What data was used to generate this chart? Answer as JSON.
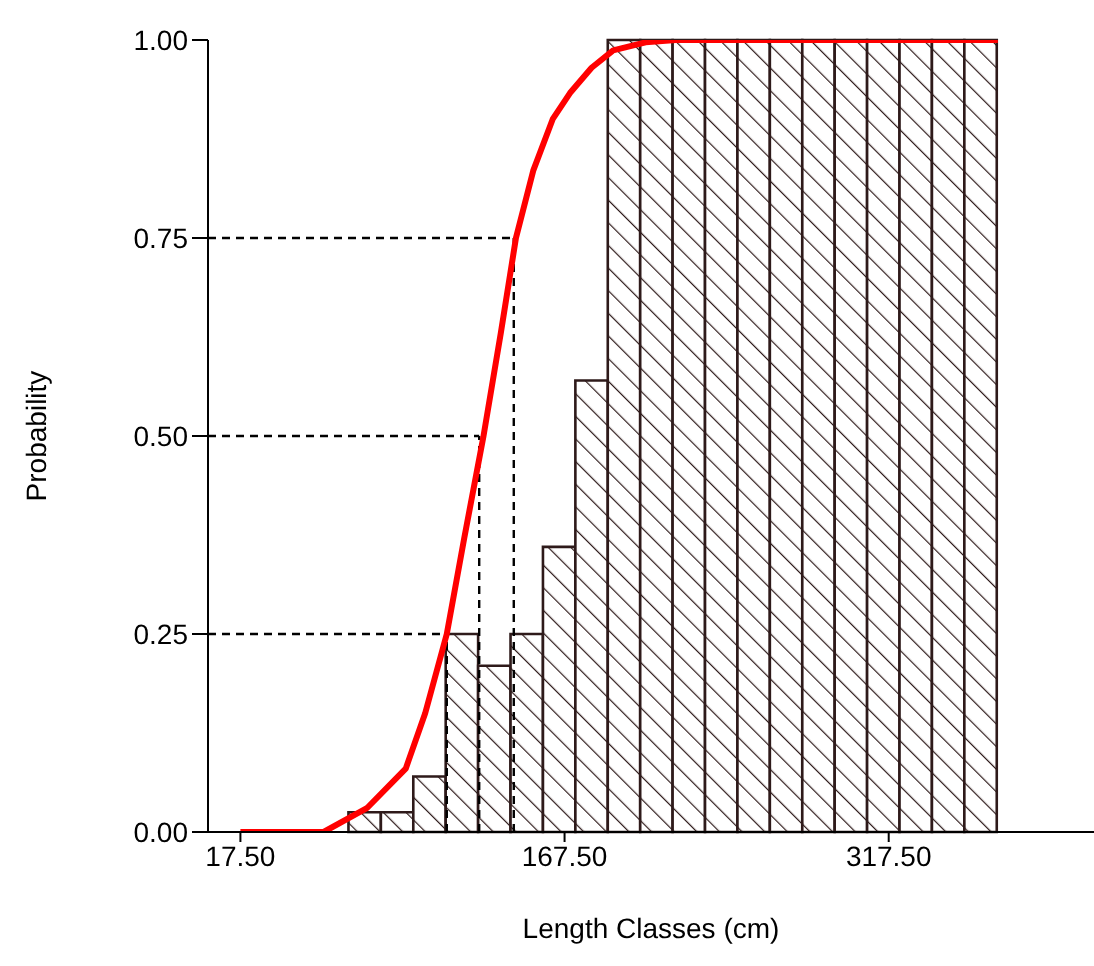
{
  "chart_data": {
    "type": "histogram",
    "xlabel": "Length Classes (cm)",
    "ylabel": "Probability",
    "bins": [
      67.5,
      82.5,
      97.5,
      112.5,
      127.5,
      142.5,
      157.5,
      172.5,
      187.5,
      202.5,
      217.5,
      232.5,
      247.5,
      262.5,
      277.5,
      292.5,
      307.5,
      322.5,
      337.5,
      352.5,
      367.5
    ],
    "values": [
      0.025,
      0.025,
      0.07,
      0.25,
      0.21,
      0.25,
      0.36,
      0.57,
      1,
      1,
      1,
      1,
      1,
      1,
      1,
      1,
      1,
      1,
      1,
      1
    ],
    "color": "#2e1a1a",
    "series": [
      {
        "type": "line",
        "color": "#ff0000",
        "x": [
          17.5,
          56,
          76,
          94,
          103,
          113,
          121,
          130,
          138,
          145,
          153,
          162,
          170,
          180,
          190,
          205,
          219,
          368
        ],
        "values": [
          0,
          0,
          0.03,
          0.08,
          0.15,
          0.25,
          0.37,
          0.5,
          0.63,
          0.75,
          0.835,
          0.9,
          0.933,
          0.965,
          0.987,
          0.997,
          1,
          1
        ]
      }
    ],
    "ref_lines": [
      {
        "axis": "y",
        "value": 0.25,
        "line_style": "dashed",
        "color": "#000000"
      },
      {
        "axis": "x",
        "value": 113,
        "line_style": "dashed",
        "color": "#000000"
      },
      {
        "axis": "y",
        "value": 0.5,
        "line_style": "dashed",
        "color": "#000000"
      },
      {
        "axis": "x",
        "value": 128,
        "line_style": "dashed",
        "color": "#000000"
      },
      {
        "axis": "y",
        "value": 0.75,
        "line_style": "dashed",
        "color": "#000000"
      },
      {
        "axis": "x",
        "value": 144,
        "line_style": "dashed",
        "color": "#000000"
      }
    ],
    "xlim": [
      2.5,
      412.5
    ],
    "ylim": [
      0,
      1
    ],
    "xticks": [
      {
        "value": 17.5,
        "label": "17.50"
      },
      {
        "value": 167.5,
        "label": "167.50"
      },
      {
        "value": 317.5,
        "label": "317.50"
      }
    ],
    "yticks": [
      {
        "value": 0,
        "label": "0.00"
      },
      {
        "value": 0.25,
        "label": "0.25"
      },
      {
        "value": 0.5,
        "label": "0.50"
      },
      {
        "value": 0.75,
        "label": "0.75"
      },
      {
        "value": 1,
        "label": "1.00"
      }
    ],
    "tick_labels": true
  }
}
